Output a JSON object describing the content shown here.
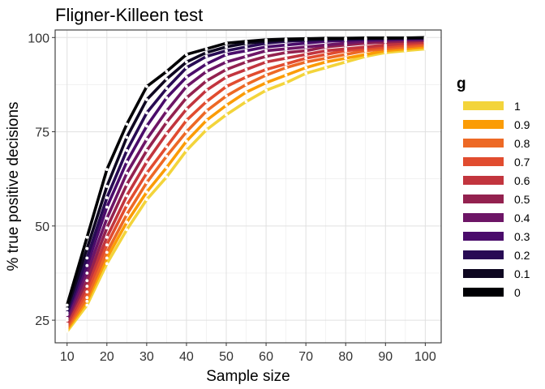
{
  "chart_data": {
    "type": "line",
    "title": "Fligner-Killeen test",
    "xlabel": "Sample size",
    "ylabel": "% true positive decisions",
    "x": [
      10,
      15,
      20,
      25,
      30,
      35,
      40,
      45,
      50,
      55,
      60,
      65,
      70,
      75,
      80,
      85,
      90,
      95,
      100
    ],
    "xlim": [
      7,
      104
    ],
    "ylim": [
      19,
      102
    ],
    "xticks": [
      10,
      20,
      30,
      40,
      50,
      60,
      70,
      80,
      90,
      100
    ],
    "yticks": [
      25,
      50,
      75,
      100
    ],
    "grid": true,
    "legend": {
      "title": "g",
      "position": "right"
    },
    "series": [
      {
        "name": "1",
        "color": "#F3D43B",
        "values": [
          22.0,
          29.0,
          40.0,
          49.0,
          57.0,
          63.0,
          70.0,
          75.5,
          79.5,
          83.0,
          86.0,
          88.0,
          90.5,
          92.0,
          93.5,
          95.0,
          96.0,
          96.5,
          97.0
        ]
      },
      {
        "name": "0.9",
        "color": "#FB9C06",
        "values": [
          22.5,
          30.0,
          41.5,
          51.0,
          59.0,
          65.5,
          72.5,
          78.0,
          82.0,
          85.5,
          88.0,
          90.0,
          92.0,
          93.5,
          94.5,
          95.5,
          96.5,
          97.0,
          97.5
        ]
      },
      {
        "name": "0.8",
        "color": "#ED6925",
        "values": [
          23.0,
          31.0,
          43.0,
          53.0,
          61.5,
          68.5,
          75.0,
          80.5,
          84.5,
          87.5,
          90.0,
          92.0,
          93.5,
          94.5,
          95.5,
          96.5,
          97.0,
          97.5,
          98.0
        ]
      },
      {
        "name": "0.7",
        "color": "#E14C2F",
        "values": [
          23.5,
          32.5,
          45.0,
          55.5,
          64.0,
          71.0,
          78.0,
          83.0,
          87.0,
          89.5,
          91.5,
          93.0,
          94.5,
          95.5,
          96.5,
          97.0,
          97.5,
          98.0,
          98.5
        ]
      },
      {
        "name": "0.6",
        "color": "#C2353E",
        "values": [
          24.0,
          34.0,
          47.0,
          58.0,
          67.0,
          74.5,
          81.0,
          86.0,
          89.5,
          91.5,
          93.5,
          94.5,
          95.5,
          96.5,
          97.0,
          97.5,
          98.0,
          98.5,
          98.8
        ]
      },
      {
        "name": "0.5",
        "color": "#93214F",
        "values": [
          25.0,
          35.5,
          49.5,
          61.0,
          70.0,
          77.5,
          84.0,
          88.5,
          91.5,
          93.5,
          95.0,
          96.0,
          96.5,
          97.5,
          98.0,
          98.5,
          98.8,
          99.0,
          99.2
        ]
      },
      {
        "name": "0.4",
        "color": "#6D1566",
        "values": [
          25.5,
          37.5,
          52.0,
          64.0,
          73.0,
          80.5,
          87.0,
          91.0,
          93.5,
          95.0,
          96.5,
          97.0,
          97.5,
          98.0,
          98.5,
          99.0,
          99.2,
          99.4,
          99.5
        ]
      },
      {
        "name": "0.3",
        "color": "#4A0C6B",
        "values": [
          26.5,
          39.5,
          55.0,
          67.0,
          76.5,
          84.0,
          89.5,
          93.0,
          95.5,
          96.5,
          97.5,
          98.0,
          98.5,
          99.0,
          99.2,
          99.4,
          99.5,
          99.6,
          99.7
        ]
      },
      {
        "name": "0.2",
        "color": "#280B54",
        "values": [
          27.0,
          41.5,
          57.5,
          70.0,
          80.0,
          86.5,
          92.0,
          95.0,
          96.5,
          97.5,
          98.5,
          99.0,
          99.2,
          99.4,
          99.5,
          99.6,
          99.7,
          99.8,
          99.8
        ]
      },
      {
        "name": "0.1",
        "color": "#0E0721",
        "values": [
          28.0,
          44.0,
          60.5,
          73.5,
          83.5,
          89.0,
          93.5,
          96.0,
          97.5,
          98.5,
          99.0,
          99.3,
          99.5,
          99.6,
          99.7,
          99.8,
          99.8,
          99.9,
          99.9
        ]
      },
      {
        "name": "0",
        "color": "#000004",
        "values": [
          29.0,
          47.0,
          65.0,
          77.0,
          87.0,
          91.0,
          95.5,
          97.0,
          98.5,
          99.0,
          99.4,
          99.6,
          99.7,
          99.8,
          99.8,
          99.9,
          99.9,
          99.9,
          100.0
        ]
      }
    ]
  }
}
